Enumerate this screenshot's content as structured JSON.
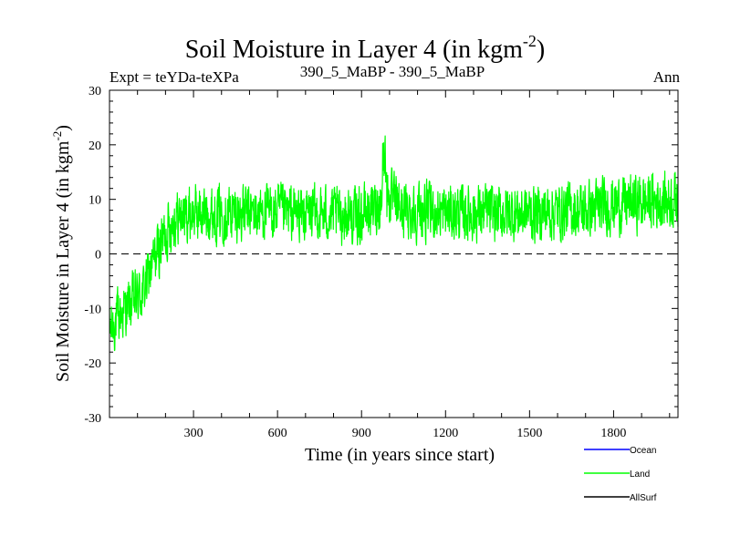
{
  "chart_data": {
    "type": "line",
    "title": "Soil Moisture in Layer 4 (in kgm",
    "title_sup": "-2",
    "title_close": ")",
    "subtitle_left": "Expt = teYDa-teXPa",
    "subtitle_center": "390_5_MaBP - 390_5_MaBP",
    "subtitle_right": "Ann",
    "xlabel": "Time (in years since start)",
    "ylabel": "Soil Moisture in Layer 4 (in kgm",
    "ylabel_sup": "-2",
    "ylabel_close": ")",
    "xlim": [
      0,
      2030
    ],
    "ylim": [
      -30,
      30
    ],
    "xticks": [
      300,
      600,
      900,
      1200,
      1500,
      1800
    ],
    "xtick_labels": [
      "300",
      "600",
      "900",
      "1200",
      "1500",
      "1800"
    ],
    "yticks": [
      -30,
      -20,
      -10,
      0,
      10,
      20,
      30
    ],
    "ytick_labels": [
      "-30",
      "-20",
      "-10",
      "0",
      "10",
      "20",
      "30"
    ],
    "zero_line": 0,
    "series": [
      {
        "name": "Ocean",
        "color": "#0000ff",
        "values": []
      },
      {
        "name": "Land",
        "color": "#00ff00",
        "trend_x": [
          0,
          40,
          80,
          120,
          160,
          200,
          230,
          300,
          600,
          900,
          960,
          980,
          1000,
          1050,
          1200,
          1500,
          1700,
          1800,
          2030
        ],
        "trend_y": [
          -14,
          -11,
          -9,
          -7,
          -1,
          4,
          6.5,
          7.5,
          7.5,
          7,
          9,
          12,
          10,
          8,
          7.5,
          7.5,
          8,
          9,
          10
        ],
        "noise_amplitude": 4.5,
        "n_points": 2030
      },
      {
        "name": "AllSurf",
        "color": "#000000",
        "values": []
      }
    ],
    "legend_position": "bottom-right"
  }
}
